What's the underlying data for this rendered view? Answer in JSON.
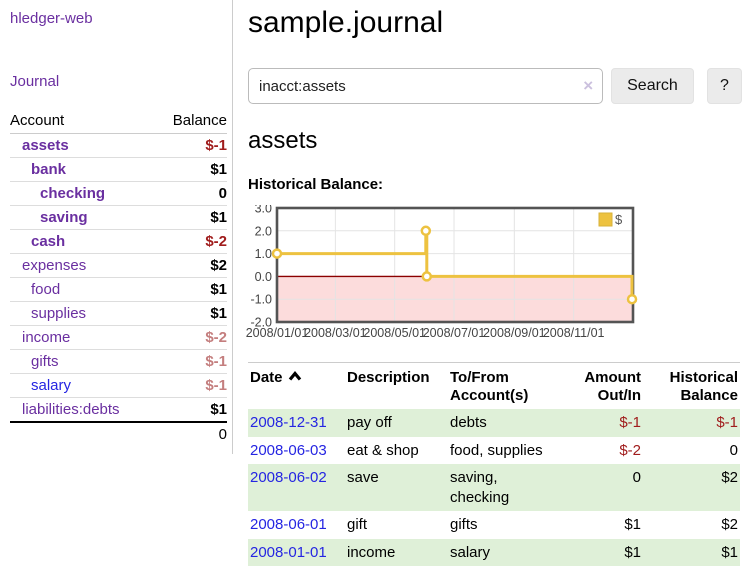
{
  "app": {
    "title": "hledger-web"
  },
  "sidebar": {
    "journal_link": "Journal",
    "table": {
      "headers": [
        "Account",
        "Balance"
      ],
      "rows": [
        {
          "account": "assets",
          "balance": "$-1",
          "indent": 1,
          "bold": true,
          "balance_color": "negative"
        },
        {
          "account": "bank",
          "balance": "$1",
          "indent": 2,
          "bold": true,
          "balance_color": "normal"
        },
        {
          "account": "checking",
          "balance": "0",
          "indent": 3,
          "bold": true,
          "balance_color": "normal"
        },
        {
          "account": "saving",
          "balance": "$1",
          "indent": 3,
          "bold": true,
          "balance_color": "normal"
        },
        {
          "account": "cash",
          "balance": "$-2",
          "indent": 2,
          "bold": true,
          "balance_color": "negative"
        },
        {
          "account": "expenses",
          "balance": "$2",
          "indent": 1,
          "bold": false,
          "balance_color": "normal"
        },
        {
          "account": "food",
          "balance": "$1",
          "indent": 2,
          "bold": false,
          "balance_color": "normal"
        },
        {
          "account": "supplies",
          "balance": "$1",
          "indent": 2,
          "bold": false,
          "balance_color": "normal"
        },
        {
          "account": "income",
          "balance": "$-2",
          "indent": 1,
          "bold": false,
          "balance_color": "negative-light"
        },
        {
          "account": "gifts",
          "balance": "$-1",
          "indent": 2,
          "bold": false,
          "balance_color": "negative-light"
        },
        {
          "account": "salary",
          "balance": "$-1",
          "indent": 2,
          "bold": false,
          "balance_color": "negative-light",
          "link_color": "blue"
        },
        {
          "account": "liabilities:debts",
          "balance": "$1",
          "indent": 1,
          "bold": false,
          "balance_color": "normal"
        }
      ],
      "total": "0"
    }
  },
  "header": {
    "title": "sample.journal"
  },
  "search": {
    "value": "inacct:assets",
    "clear_icon": "×",
    "button_label": "Search",
    "help_label": "?"
  },
  "account_page": {
    "title": "assets",
    "chart_label": "Historical Balance:"
  },
  "chart_data": {
    "type": "line",
    "style": "steps-post",
    "title": "Historical Balance",
    "series": [
      {
        "name": "$",
        "points": [
          [
            "2008-01-01",
            1
          ],
          [
            "2008-06-02",
            2
          ],
          [
            "2008-06-03",
            0
          ],
          [
            "2008-12-31",
            -1
          ]
        ]
      }
    ],
    "xlim": [
      "2008-01-01",
      "2009-01-01"
    ],
    "ylim": [
      -2,
      3
    ],
    "y_ticks": [
      3,
      2,
      1,
      0,
      -1,
      -2
    ],
    "x_tick_dates": [
      "2008-01-01",
      "2008-03-01",
      "2008-05-01",
      "2008-07-01",
      "2008-09-01",
      "2008-11-01"
    ],
    "x_tick_labels": [
      "2008/01/01",
      "2008/03/01",
      "2008/05/01",
      "2008/07/01",
      "2008/09/01",
      "2008/11/01"
    ],
    "grid": true,
    "negative_region_shaded": true,
    "legend": {
      "position": "top-right",
      "entries": [
        "$"
      ]
    }
  },
  "transactions": {
    "headers": [
      "Date",
      "Description",
      "To/From Account(s)",
      "Amount Out/In",
      "Historical Balance"
    ],
    "rows": [
      {
        "date": "2008-12-31",
        "description": "pay off",
        "accounts": "debts",
        "amount": "$-1",
        "amount_negative": true,
        "balance": "$-1",
        "balance_negative": true
      },
      {
        "date": "2008-06-03",
        "description": "eat & shop",
        "accounts": "food, supplies",
        "amount": "$-2",
        "amount_negative": true,
        "balance": "0",
        "balance_negative": false
      },
      {
        "date": "2008-06-02",
        "description": "save",
        "accounts": "saving, checking",
        "amount": "0",
        "amount_negative": false,
        "balance": "$2",
        "balance_negative": false
      },
      {
        "date": "2008-06-01",
        "description": "gift",
        "accounts": "gifts",
        "amount": "$1",
        "amount_negative": false,
        "balance": "$2",
        "balance_negative": false
      },
      {
        "date": "2008-01-01",
        "description": "income",
        "accounts": "salary",
        "amount": "$1",
        "amount_negative": false,
        "balance": "$1",
        "balance_negative": false
      }
    ]
  },
  "colors": {
    "purple_link": "#6a2fa0",
    "blue_link": "#2525e2",
    "negative_dark": "#a01c1c",
    "negative_light": "#c47e7e",
    "row_green": "#dff0d8",
    "chart_line": "#edc240",
    "chart_negative_fill": "#fcdcdc",
    "chart_zero_line": "#8b0000",
    "chart_border": "#545454",
    "chart_grid": "#e4e4e4",
    "chart_tick_text": "#444444"
  }
}
